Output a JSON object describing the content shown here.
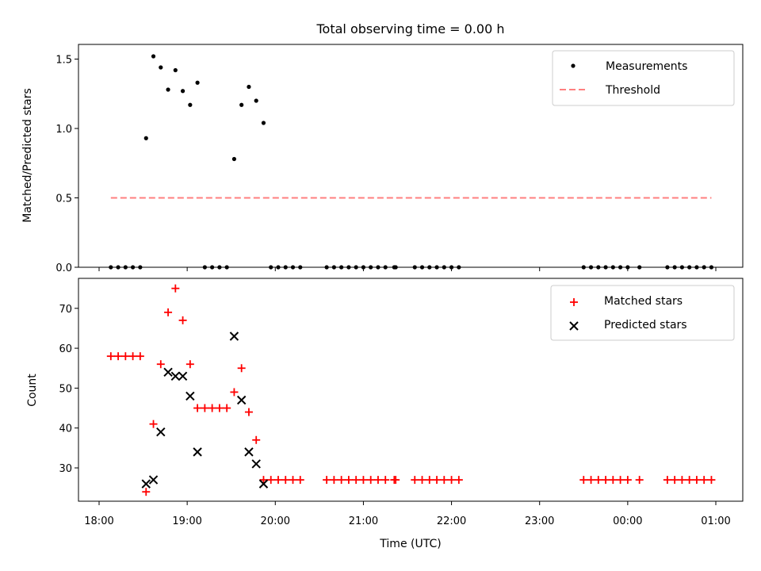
{
  "title": "Total observing time = 0.00 h",
  "chart_data": [
    {
      "type": "scatter",
      "ylabel": "Matched/Predicted stars",
      "ylim": [
        0,
        1.6
      ],
      "yticks": [
        0.0,
        0.5,
        1.0,
        1.5
      ],
      "ytick_labels": [
        "0.0",
        "0.5",
        "1.0",
        "1.5"
      ],
      "legend_position": "top-right",
      "series": [
        {
          "name": "Measurements",
          "marker": "dot",
          "color": "#000000",
          "points": [
            [
              "18:08",
              0
            ],
            [
              "18:13",
              0
            ],
            [
              "18:18",
              0
            ],
            [
              "18:23",
              0
            ],
            [
              "18:28",
              0
            ],
            [
              "18:32",
              0.93
            ],
            [
              "18:37",
              1.52
            ],
            [
              "18:42",
              1.44
            ],
            [
              "18:47",
              1.28
            ],
            [
              "18:52",
              1.42
            ],
            [
              "18:57",
              1.27
            ],
            [
              "19:02",
              1.17
            ],
            [
              "19:07",
              1.33
            ],
            [
              "19:12",
              0
            ],
            [
              "19:17",
              0
            ],
            [
              "19:22",
              0
            ],
            [
              "19:27",
              0
            ],
            [
              "19:32",
              0.78
            ],
            [
              "19:37",
              1.17
            ],
            [
              "19:42",
              1.3
            ],
            [
              "19:47",
              1.2
            ],
            [
              "19:52",
              1.04
            ],
            [
              "19:57",
              0
            ],
            [
              "20:02",
              0
            ],
            [
              "20:07",
              0
            ],
            [
              "20:12",
              0
            ],
            [
              "20:17",
              0
            ],
            [
              "20:35",
              0
            ],
            [
              "20:40",
              0
            ],
            [
              "20:45",
              0
            ],
            [
              "20:50",
              0
            ],
            [
              "20:55",
              0
            ],
            [
              "21:00",
              0
            ],
            [
              "21:05",
              0
            ],
            [
              "21:10",
              0
            ],
            [
              "21:15",
              0
            ],
            [
              "21:21",
              0
            ],
            [
              "21:22",
              0
            ],
            [
              "21:35",
              0
            ],
            [
              "21:40",
              0
            ],
            [
              "21:45",
              0
            ],
            [
              "21:50",
              0
            ],
            [
              "21:55",
              0
            ],
            [
              "22:00",
              0
            ],
            [
              "22:05",
              0
            ],
            [
              "23:30",
              0
            ],
            [
              "23:35",
              0
            ],
            [
              "23:40",
              0
            ],
            [
              "23:45",
              0
            ],
            [
              "23:50",
              0
            ],
            [
              "23:55",
              0
            ],
            [
              "00:00",
              0
            ],
            [
              "00:08",
              0
            ],
            [
              "00:27",
              0
            ],
            [
              "00:32",
              0
            ],
            [
              "00:37",
              0
            ],
            [
              "00:42",
              0
            ],
            [
              "00:47",
              0
            ],
            [
              "00:52",
              0
            ],
            [
              "00:57",
              0
            ]
          ]
        },
        {
          "name": "Threshold",
          "type": "line",
          "style": "dashed",
          "color": "#ff7f7f",
          "points": [
            [
              "18:08",
              0.5
            ],
            [
              "00:57",
              0.5
            ]
          ]
        }
      ]
    },
    {
      "type": "scatter",
      "xlabel": "Time (UTC)",
      "ylabel": "Count",
      "ylim": [
        21,
        78
      ],
      "yticks": [
        30,
        40,
        50,
        60,
        70
      ],
      "ytick_labels": [
        "30",
        "40",
        "50",
        "60",
        "70"
      ],
      "xticks": [
        "18:00",
        "19:00",
        "20:00",
        "21:00",
        "22:00",
        "23:00",
        "00:00",
        "01:00"
      ],
      "legend_position": "top-right",
      "series": [
        {
          "name": "Matched stars",
          "marker": "plus",
          "color": "#ff0000",
          "points": [
            [
              "18:08",
              58
            ],
            [
              "18:13",
              58
            ],
            [
              "18:18",
              58
            ],
            [
              "18:23",
              58
            ],
            [
              "18:28",
              58
            ],
            [
              "18:32",
              24
            ],
            [
              "18:37",
              41
            ],
            [
              "18:42",
              56
            ],
            [
              "18:47",
              69
            ],
            [
              "18:52",
              75
            ],
            [
              "18:57",
              67
            ],
            [
              "19:02",
              56
            ],
            [
              "19:07",
              45
            ],
            [
              "19:12",
              45
            ],
            [
              "19:17",
              45
            ],
            [
              "19:22",
              45
            ],
            [
              "19:27",
              45
            ],
            [
              "19:32",
              49
            ],
            [
              "19:37",
              55
            ],
            [
              "19:42",
              44
            ],
            [
              "19:47",
              37
            ],
            [
              "19:52",
              27
            ],
            [
              "19:57",
              27
            ],
            [
              "20:02",
              27
            ],
            [
              "20:07",
              27
            ],
            [
              "20:12",
              27
            ],
            [
              "20:17",
              27
            ],
            [
              "20:35",
              27
            ],
            [
              "20:40",
              27
            ],
            [
              "20:45",
              27
            ],
            [
              "20:50",
              27
            ],
            [
              "20:55",
              27
            ],
            [
              "21:00",
              27
            ],
            [
              "21:05",
              27
            ],
            [
              "21:10",
              27
            ],
            [
              "21:15",
              27
            ],
            [
              "21:21",
              27
            ],
            [
              "21:22",
              27
            ],
            [
              "21:35",
              27
            ],
            [
              "21:40",
              27
            ],
            [
              "21:45",
              27
            ],
            [
              "21:50",
              27
            ],
            [
              "21:55",
              27
            ],
            [
              "22:00",
              27
            ],
            [
              "22:05",
              27
            ],
            [
              "23:30",
              27
            ],
            [
              "23:35",
              27
            ],
            [
              "23:40",
              27
            ],
            [
              "23:45",
              27
            ],
            [
              "23:50",
              27
            ],
            [
              "23:55",
              27
            ],
            [
              "00:00",
              27
            ],
            [
              "00:08",
              27
            ],
            [
              "00:27",
              27
            ],
            [
              "00:32",
              27
            ],
            [
              "00:37",
              27
            ],
            [
              "00:42",
              27
            ],
            [
              "00:47",
              27
            ],
            [
              "00:52",
              27
            ],
            [
              "00:57",
              27
            ]
          ]
        },
        {
          "name": "Predicted stars",
          "marker": "x",
          "color": "#000000",
          "points": [
            [
              "18:32",
              26
            ],
            [
              "18:37",
              27
            ],
            [
              "18:42",
              39
            ],
            [
              "18:47",
              54
            ],
            [
              "18:52",
              53
            ],
            [
              "18:57",
              53
            ],
            [
              "19:02",
              48
            ],
            [
              "19:07",
              34
            ],
            [
              "19:32",
              63
            ],
            [
              "19:37",
              47
            ],
            [
              "19:42",
              34
            ],
            [
              "19:47",
              31
            ],
            [
              "19:52",
              26
            ]
          ]
        }
      ]
    }
  ]
}
